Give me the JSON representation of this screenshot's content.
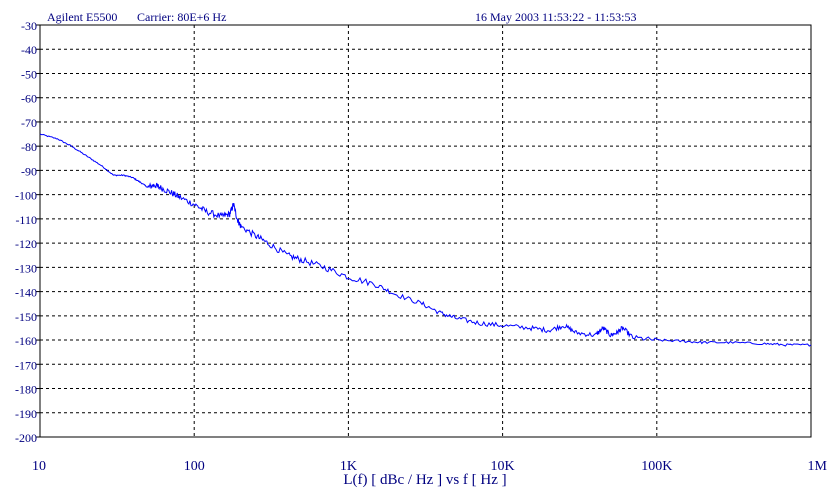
{
  "header": {
    "instrument": "Agilent E5500",
    "carrier": "Carrier: 80E+6 Hz",
    "timestamp": "16 May 2003  11:53:22 - 11:53:53"
  },
  "chart_data": {
    "type": "line",
    "title": "",
    "xlabel": "L(f)  [ dBc / Hz ]  vs  f  [ Hz ]",
    "ylabel": "",
    "x_scale": "log",
    "xlim": [
      10,
      1000000
    ],
    "ylim": [
      -200,
      -30
    ],
    "grid": true,
    "legend": "none",
    "x_ticks": [
      {
        "value": 10,
        "label": "10"
      },
      {
        "value": 100,
        "label": "100"
      },
      {
        "value": 1000,
        "label": "1K"
      },
      {
        "value": 10000,
        "label": "10K"
      },
      {
        "value": 100000,
        "label": "100K"
      },
      {
        "value": 1000000,
        "label": "1M"
      }
    ],
    "y_ticks": [
      -30,
      -40,
      -50,
      -60,
      -70,
      -80,
      -90,
      -100,
      -110,
      -120,
      -130,
      -140,
      -150,
      -160,
      -170,
      -180,
      -190,
      -200
    ],
    "series": [
      {
        "color": "#0000ff",
        "x": [
          10,
          13,
          16,
          20,
          25,
          30,
          35,
          40,
          45,
          50,
          55,
          60,
          70,
          80,
          100,
          120,
          150,
          170,
          180,
          190,
          200,
          250,
          300,
          400,
          500,
          700,
          1000,
          1500,
          2000,
          3000,
          4000,
          5000,
          7000,
          10000,
          15000,
          20000,
          25000,
          30000,
          40000,
          45000,
          50000,
          55000,
          60000,
          70000,
          100000,
          150000,
          200000,
          300000,
          500000,
          700000,
          1000000
        ],
        "y": [
          -75,
          -77,
          -80,
          -84,
          -88,
          -92,
          -92,
          -93,
          -95,
          -97,
          -96,
          -97,
          -99,
          -101,
          -104,
          -107,
          -109,
          -108,
          -104,
          -110,
          -113,
          -117,
          -120,
          -125,
          -127,
          -130,
          -134,
          -137,
          -141,
          -145,
          -149,
          -151,
          -153,
          -154,
          -155,
          -156,
          -154,
          -157,
          -158,
          -155,
          -158,
          -157,
          -155,
          -159,
          -160,
          -160.5,
          -161,
          -161,
          -161.5,
          -162,
          -162
        ]
      }
    ]
  }
}
